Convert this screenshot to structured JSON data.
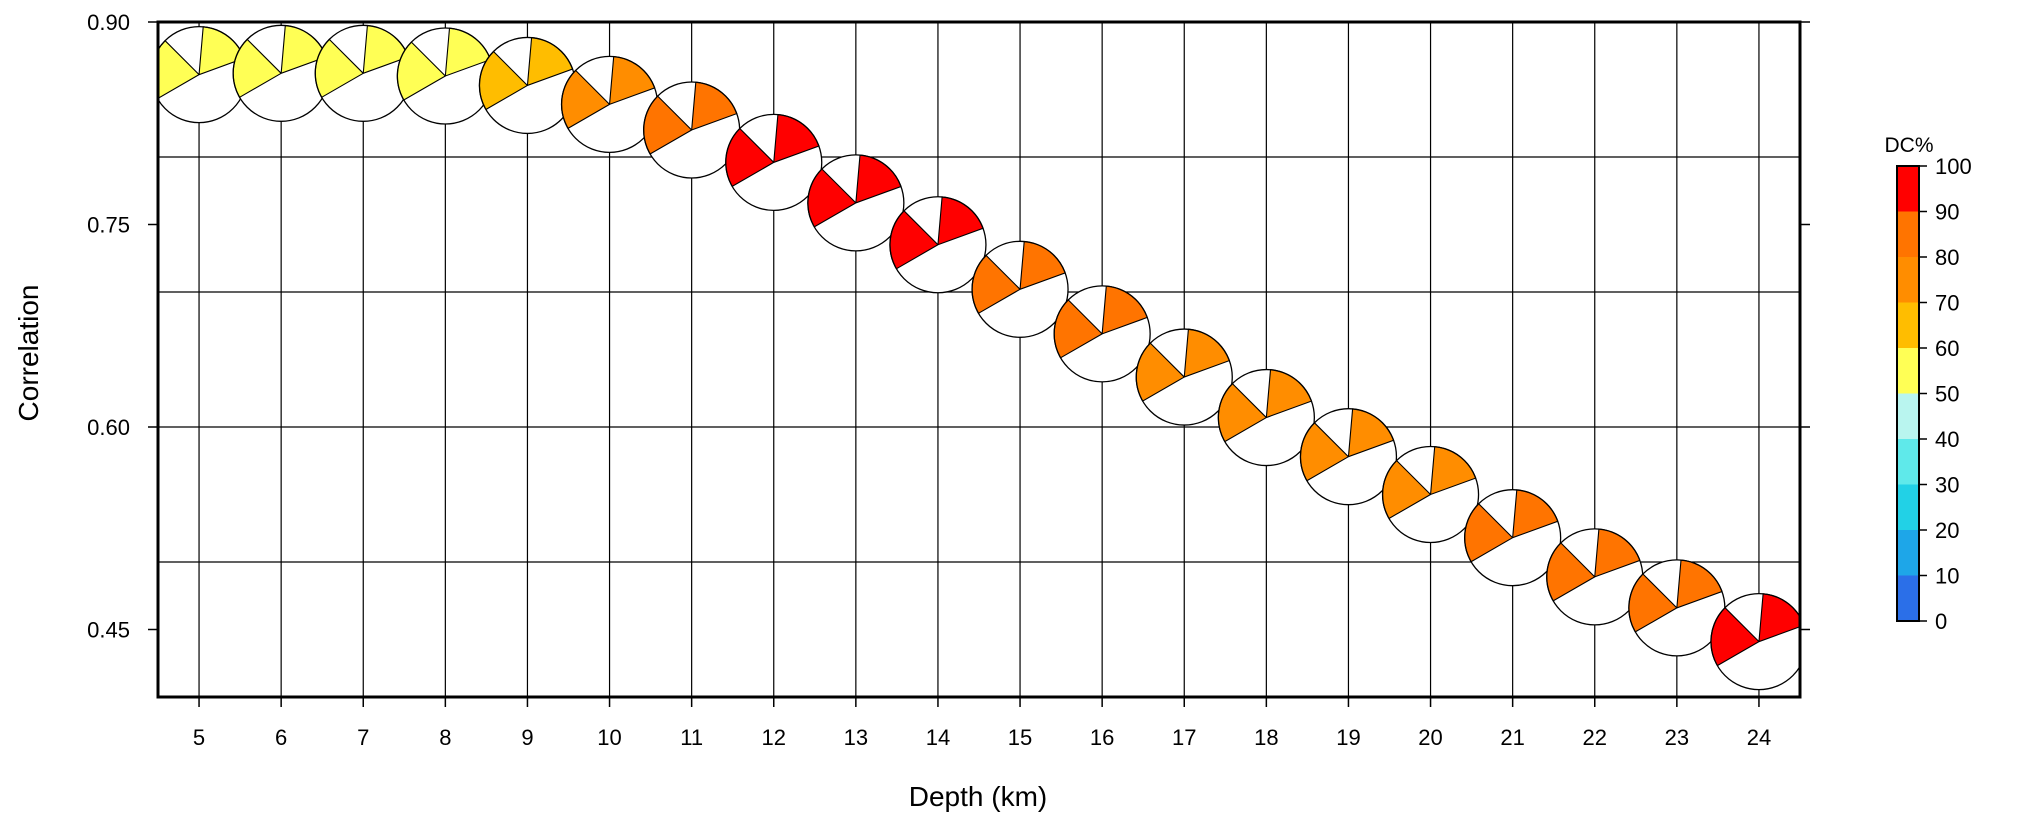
{
  "chart_data": {
    "type": "scatter",
    "marker": "beachball",
    "xlabel": "Depth (km)",
    "ylabel": "Correlation",
    "xlim": [
      4.5,
      24.5
    ],
    "ylim": [
      0.4,
      0.9
    ],
    "xticks": [
      5,
      6,
      7,
      8,
      9,
      10,
      11,
      12,
      13,
      14,
      15,
      16,
      17,
      18,
      19,
      20,
      21,
      22,
      23,
      24
    ],
    "yticks": [
      "0.45",
      "0.60",
      "0.75",
      "0.90"
    ],
    "ygrid": [
      0.5,
      0.6,
      0.7,
      0.8
    ],
    "grid": true,
    "points": [
      {
        "depth": 5,
        "correlation": 0.861,
        "dc": 55
      },
      {
        "depth": 6,
        "correlation": 0.862,
        "dc": 55
      },
      {
        "depth": 7,
        "correlation": 0.862,
        "dc": 55
      },
      {
        "depth": 8,
        "correlation": 0.86,
        "dc": 55
      },
      {
        "depth": 9,
        "correlation": 0.853,
        "dc": 65
      },
      {
        "depth": 10,
        "correlation": 0.839,
        "dc": 75
      },
      {
        "depth": 11,
        "correlation": 0.82,
        "dc": 85
      },
      {
        "depth": 12,
        "correlation": 0.796,
        "dc": 95
      },
      {
        "depth": 13,
        "correlation": 0.766,
        "dc": 95
      },
      {
        "depth": 14,
        "correlation": 0.735,
        "dc": 95
      },
      {
        "depth": 15,
        "correlation": 0.702,
        "dc": 85
      },
      {
        "depth": 16,
        "correlation": 0.669,
        "dc": 85
      },
      {
        "depth": 17,
        "correlation": 0.637,
        "dc": 75
      },
      {
        "depth": 18,
        "correlation": 0.607,
        "dc": 75
      },
      {
        "depth": 19,
        "correlation": 0.578,
        "dc": 75
      },
      {
        "depth": 20,
        "correlation": 0.55,
        "dc": 75
      },
      {
        "depth": 21,
        "correlation": 0.518,
        "dc": 85
      },
      {
        "depth": 22,
        "correlation": 0.489,
        "dc": 85
      },
      {
        "depth": 23,
        "correlation": 0.466,
        "dc": 85
      },
      {
        "depth": 24,
        "correlation": 0.441,
        "dc": 95
      }
    ],
    "colorbar": {
      "title": "DC%",
      "labels": [
        "100",
        "90",
        "80",
        "70",
        "60",
        "50",
        "40",
        "30",
        "20",
        "10",
        "0"
      ],
      "bins": [
        {
          "from": 0,
          "to": 10,
          "color": "#2b6fe8"
        },
        {
          "from": 10,
          "to": 20,
          "color": "#1ea6e8"
        },
        {
          "from": 20,
          "to": 30,
          "color": "#22d1e6"
        },
        {
          "from": 30,
          "to": 40,
          "color": "#5fe9ea"
        },
        {
          "from": 40,
          "to": 50,
          "color": "#b9f5ef"
        },
        {
          "from": 50,
          "to": 60,
          "color": "#ffff55"
        },
        {
          "from": 60,
          "to": 70,
          "color": "#ffbd00"
        },
        {
          "from": 70,
          "to": 80,
          "color": "#ff8d00"
        },
        {
          "from": 80,
          "to": 90,
          "color": "#ff7400"
        },
        {
          "from": 90,
          "to": 100,
          "color": "#ff0000"
        }
      ]
    }
  }
}
